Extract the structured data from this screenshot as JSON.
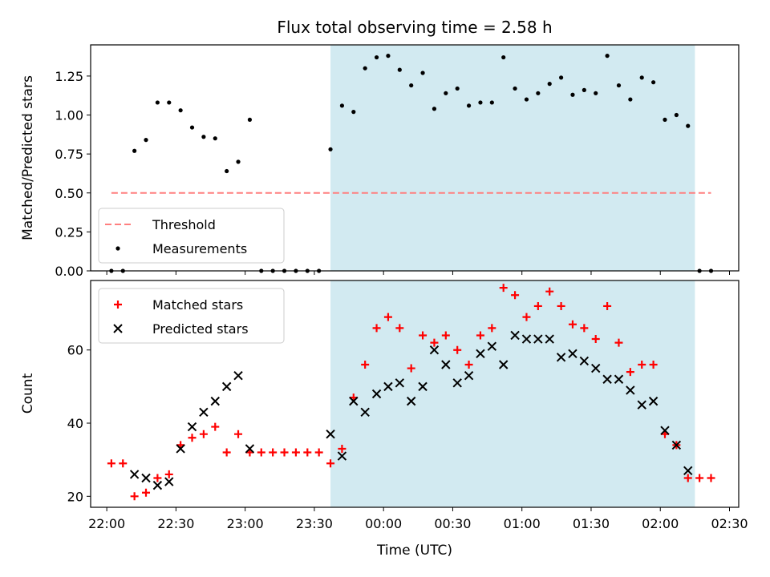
{
  "figure": {
    "title": "Flux total observing time = 2.58 h",
    "xlabel": "Time (UTC)",
    "shade_color": "#add8e6"
  },
  "chart_data": [
    {
      "type": "scatter",
      "panel": "top",
      "ylabel": "Matched/Predicted stars",
      "xlim": [
        "21:53",
        "02:34"
      ],
      "ylim": [
        0,
        1.45
      ],
      "x_ticks": [
        "22:00",
        "22:30",
        "23:00",
        "23:30",
        "00:00",
        "00:30",
        "01:00",
        "01:30",
        "02:00",
        "02:30"
      ],
      "y_ticks": [
        "0.00",
        "0.25",
        "0.50",
        "0.75",
        "1.00",
        "1.25"
      ],
      "shaded_region": [
        "23:37",
        "02:15"
      ],
      "legend_position": "lower left",
      "threshold": {
        "name": "Threshold",
        "value": 0.5,
        "x_range": [
          "22:02",
          "02:22"
        ],
        "color": "#ff7f7f",
        "style": "dashed"
      },
      "series": [
        {
          "name": "Measurements",
          "color": "#000000",
          "x": [
            "22:02",
            "22:07",
            "22:12",
            "22:17",
            "22:22",
            "22:27",
            "22:32",
            "22:37",
            "22:42",
            "22:47",
            "22:52",
            "22:57",
            "23:02",
            "23:07",
            "23:12",
            "23:17",
            "23:22",
            "23:27",
            "23:32",
            "23:37",
            "23:42",
            "23:47",
            "23:52",
            "23:57",
            "00:02",
            "00:07",
            "00:12",
            "00:17",
            "00:22",
            "00:27",
            "00:32",
            "00:37",
            "00:42",
            "00:47",
            "00:52",
            "00:57",
            "01:02",
            "01:07",
            "01:12",
            "01:17",
            "01:22",
            "01:27",
            "01:32",
            "01:37",
            "01:42",
            "01:47",
            "01:52",
            "01:57",
            "02:02",
            "02:07",
            "02:12",
            "02:17",
            "02:22"
          ],
          "y": [
            0,
            0,
            0.77,
            0.84,
            1.08,
            1.08,
            1.03,
            0.92,
            0.86,
            0.85,
            0.64,
            0.7,
            0.97,
            0,
            0,
            0,
            0,
            0,
            0,
            0.78,
            1.06,
            1.02,
            1.3,
            1.37,
            1.38,
            1.29,
            1.19,
            1.27,
            1.04,
            1.14,
            1.17,
            1.06,
            1.08,
            1.08,
            1.37,
            1.17,
            1.1,
            1.14,
            1.2,
            1.24,
            1.13,
            1.16,
            1.14,
            1.38,
            1.19,
            1.1,
            1.24,
            1.21,
            0.97,
            1.0,
            0.93,
            0,
            0
          ]
        }
      ]
    },
    {
      "type": "scatter",
      "panel": "bottom",
      "ylabel": "Count",
      "xlim": [
        "21:53",
        "02:34"
      ],
      "ylim": [
        17,
        79
      ],
      "x_ticks": [
        "22:00",
        "22:30",
        "23:00",
        "23:30",
        "00:00",
        "00:30",
        "01:00",
        "01:30",
        "02:00",
        "02:30"
      ],
      "y_ticks": [
        "20",
        "40",
        "60"
      ],
      "shaded_region": [
        "23:37",
        "02:15"
      ],
      "legend_position": "upper left",
      "series": [
        {
          "name": "Matched stars",
          "marker": "plus",
          "color": "#ff0000",
          "x": [
            "22:02",
            "22:07",
            "22:12",
            "22:17",
            "22:22",
            "22:27",
            "22:32",
            "22:37",
            "22:42",
            "22:47",
            "22:52",
            "22:57",
            "23:02",
            "23:07",
            "23:12",
            "23:17",
            "23:22",
            "23:27",
            "23:32",
            "23:37",
            "23:42",
            "23:47",
            "23:52",
            "23:57",
            "00:02",
            "00:07",
            "00:12",
            "00:17",
            "00:22",
            "00:27",
            "00:32",
            "00:37",
            "00:42",
            "00:47",
            "00:52",
            "00:57",
            "01:02",
            "01:07",
            "01:12",
            "01:17",
            "01:22",
            "01:27",
            "01:32",
            "01:37",
            "01:42",
            "01:47",
            "01:52",
            "01:57",
            "02:02",
            "02:07",
            "02:12",
            "02:17",
            "02:22"
          ],
          "y": [
            29,
            29,
            20,
            21,
            25,
            26,
            34,
            36,
            37,
            39,
            32,
            37,
            32,
            32,
            32,
            32,
            32,
            32,
            32,
            29,
            33,
            47,
            56,
            66,
            69,
            66,
            55,
            64,
            62,
            64,
            60,
            56,
            64,
            66,
            77,
            75,
            69,
            72,
            76,
            72,
            67,
            66,
            63,
            72,
            62,
            54,
            56,
            56,
            37,
            34,
            25,
            25,
            25
          ]
        },
        {
          "name": "Predicted stars",
          "marker": "x",
          "color": "#000000",
          "x": [
            "22:12",
            "22:17",
            "22:22",
            "22:27",
            "22:32",
            "22:37",
            "22:42",
            "22:47",
            "22:52",
            "22:57",
            "23:02",
            "23:37",
            "23:42",
            "23:47",
            "23:52",
            "23:57",
            "00:02",
            "00:07",
            "00:12",
            "00:17",
            "00:22",
            "00:27",
            "00:32",
            "00:37",
            "00:42",
            "00:47",
            "00:52",
            "00:57",
            "01:02",
            "01:07",
            "01:12",
            "01:17",
            "01:22",
            "01:27",
            "01:32",
            "01:37",
            "01:42",
            "01:47",
            "01:52",
            "01:57",
            "02:02",
            "02:07",
            "02:12"
          ],
          "y": [
            26,
            25,
            23,
            24,
            33,
            39,
            43,
            46,
            50,
            53,
            33,
            37,
            31,
            46,
            43,
            48,
            50,
            51,
            46,
            50,
            60,
            56,
            51,
            53,
            59,
            61,
            56,
            64,
            63,
            63,
            63,
            58,
            59,
            57,
            55,
            52,
            52,
            49,
            45,
            46,
            38,
            34,
            27
          ]
        }
      ]
    }
  ]
}
